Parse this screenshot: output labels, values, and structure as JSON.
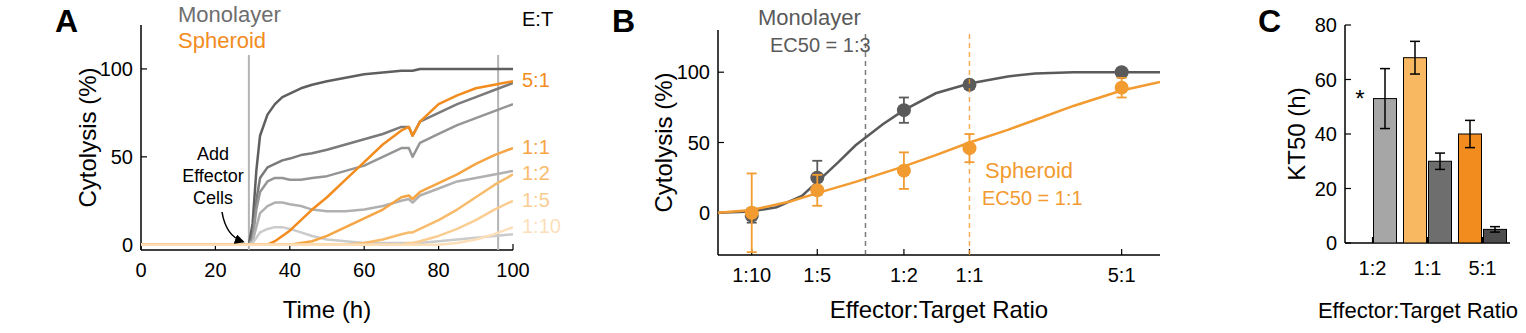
{
  "chart_data": [
    {
      "type": "line",
      "title": "A",
      "x_label": "Time (h)",
      "y_label": "Cytolysis (%)",
      "xlim": [
        0,
        100
      ],
      "ylim": [
        -3,
        125
      ],
      "xticks": [
        0,
        20,
        40,
        60,
        80,
        100
      ],
      "yticks": [
        0,
        50,
        100
      ],
      "vlines": [
        29,
        96
      ],
      "group_labels": [
        {
          "text": "Monolayer",
          "color": "#6e6e6e"
        },
        {
          "text": "Spheroid",
          "color": "#f28c1e"
        }
      ],
      "arrow_label": "Add Effector Cells",
      "legend_title": "E:T",
      "x": [
        0,
        20,
        28,
        29,
        30,
        31,
        32,
        34,
        36,
        38,
        40,
        43,
        46,
        50,
        55,
        60,
        65,
        70,
        72,
        73,
        75,
        80,
        85,
        90,
        95,
        100
      ],
      "series": [
        {
          "color": "#5f5f5f",
          "values": [
            0,
            0,
            0,
            0,
            12,
            42,
            62,
            74,
            80,
            84,
            86,
            89,
            91,
            93,
            95,
            97,
            98,
            99,
            99,
            99,
            100,
            100,
            100,
            100,
            100,
            100
          ]
        },
        {
          "color": "#7a7a7a",
          "values": [
            0,
            0,
            0,
            0,
            5,
            25,
            38,
            44,
            46,
            48,
            49,
            51,
            52,
            54,
            57,
            60,
            63,
            67,
            67,
            62,
            70,
            75,
            80,
            84,
            88,
            92
          ]
        },
        {
          "color": "#959595",
          "values": [
            0,
            0,
            0,
            0,
            3,
            20,
            30,
            36,
            38,
            38,
            37,
            37,
            38,
            39,
            42,
            45,
            50,
            55,
            55,
            50,
            58,
            63,
            68,
            72,
            76,
            80
          ]
        },
        {
          "color": "#b0b0b0",
          "values": [
            0,
            0,
            0,
            0,
            2,
            10,
            18,
            22,
            24,
            24,
            23,
            22,
            20,
            19,
            19,
            20,
            22,
            25,
            26,
            24,
            28,
            32,
            36,
            38,
            40,
            42
          ]
        },
        {
          "color": "#cbcbcb",
          "values": [
            0,
            0,
            0,
            0,
            1,
            4,
            7,
            9,
            10,
            10,
            9,
            7,
            5,
            3,
            2,
            1,
            1,
            1,
            1,
            0,
            1,
            2,
            3,
            4,
            5,
            6
          ]
        },
        {
          "name": "5:1",
          "color": "#f28c1e",
          "values": [
            0,
            0,
            0,
            0,
            0,
            0,
            0,
            0,
            2,
            5,
            8,
            14,
            20,
            27,
            37,
            47,
            57,
            65,
            67,
            62,
            70,
            80,
            85,
            89,
            91,
            93
          ]
        },
        {
          "name": "1:1",
          "color": "#f5a543",
          "values": [
            0,
            0,
            0,
            0,
            0,
            0,
            0,
            0,
            0,
            0,
            0,
            1,
            2,
            5,
            10,
            15,
            20,
            27,
            28,
            26,
            30,
            35,
            40,
            46,
            51,
            55
          ]
        },
        {
          "name": "1:2",
          "color": "#f8bb6c",
          "values": [
            0,
            0,
            0,
            0,
            0,
            0,
            0,
            0,
            0,
            0,
            0,
            0,
            0,
            0,
            0,
            1,
            3,
            6,
            7,
            7,
            9,
            14,
            20,
            27,
            34,
            40
          ]
        },
        {
          "name": "1:5",
          "color": "#facd92",
          "values": [
            0,
            0,
            0,
            0,
            0,
            0,
            0,
            0,
            0,
            0,
            0,
            0,
            0,
            0,
            0,
            0,
            0,
            0,
            1,
            1,
            2,
            5,
            9,
            14,
            20,
            25
          ]
        },
        {
          "name": "1:10",
          "color": "#fcdfb9",
          "values": [
            0,
            0,
            0,
            0,
            0,
            0,
            0,
            0,
            0,
            0,
            0,
            0,
            0,
            0,
            0,
            0,
            0,
            0,
            0,
            0,
            0,
            0,
            1,
            3,
            6,
            10
          ]
        }
      ]
    },
    {
      "type": "scatter",
      "title": "B",
      "x_label": "Effector:Target Ratio",
      "y_label": "Cytolysis (%)",
      "log": "x",
      "xlim": [
        0.07,
        7.5
      ],
      "ylim": [
        -30,
        130
      ],
      "xticks": [
        {
          "value": 0.1,
          "label": "1:10"
        },
        {
          "value": 0.2,
          "label": "1:5"
        },
        {
          "value": 0.5,
          "label": "1:2"
        },
        {
          "value": 1,
          "label": "1:1"
        },
        {
          "value": 5,
          "label": "5:1"
        }
      ],
      "yticks": [
        0,
        50,
        100
      ],
      "series": [
        {
          "name": "Monolayer",
          "type": "scatter",
          "marker": "circle",
          "color": "#5a5a5a",
          "x": [
            0.1,
            0.2,
            0.5,
            1,
            5
          ],
          "values": [
            -2,
            25,
            73,
            91,
            100
          ],
          "errors": [
            5,
            12,
            9,
            3,
            2
          ],
          "ec50": {
            "value": 0.333,
            "label": "EC50 = 1:3"
          }
        },
        {
          "type": "line",
          "line_style": "solid",
          "color": "#5a5a5a",
          "x": [
            0.07,
            0.1,
            0.13,
            0.17,
            0.2,
            0.25,
            0.3,
            0.4,
            0.5,
            0.7,
            1,
            1.5,
            2,
            3,
            5,
            7.5
          ],
          "values": [
            0,
            1,
            4,
            12,
            22,
            36,
            48,
            63,
            73,
            85,
            92,
            97,
            99,
            100,
            100,
            100
          ]
        },
        {
          "name": "Spheroid",
          "type": "scatter",
          "marker": "circle",
          "color": "#f29b30",
          "x": [
            0.1,
            0.2,
            0.5,
            1,
            5
          ],
          "values": [
            0,
            16,
            30,
            46,
            89
          ],
          "errors": [
            28,
            11,
            13,
            10,
            7
          ],
          "ec50": {
            "value": 1,
            "label": "EC50 = 1:1"
          }
        },
        {
          "type": "line",
          "line_style": "solid",
          "color": "#f29b30",
          "x": [
            0.07,
            0.1,
            0.15,
            0.2,
            0.3,
            0.5,
            0.7,
            1,
            1.5,
            2,
            3,
            5,
            7.5
          ],
          "values": [
            0,
            2,
            8,
            14,
            22,
            33,
            41,
            50,
            59,
            66,
            76,
            87,
            93
          ]
        }
      ]
    },
    {
      "type": "bar",
      "title": "C",
      "x_label": "Effector:Target Ratio",
      "y_label": "KT50 (h)",
      "categories": [
        "1:2",
        "1:1",
        "5:1"
      ],
      "ylim": [
        0,
        80
      ],
      "yticks": [
        0,
        20,
        40,
        60,
        80
      ],
      "series": [
        {
          "colors": [
            "#f9c585",
            "#f8b862",
            "#f28c1e"
          ],
          "values": [
            null,
            68,
            40
          ],
          "errors": [
            null,
            6,
            5
          ],
          "null_label": "*"
        },
        {
          "colors": [
            "#a6a6a6",
            "#6e6e6e",
            "#4d4d4d"
          ],
          "values": [
            53,
            30,
            5
          ],
          "errors": [
            11,
            3,
            1
          ]
        }
      ]
    }
  ]
}
